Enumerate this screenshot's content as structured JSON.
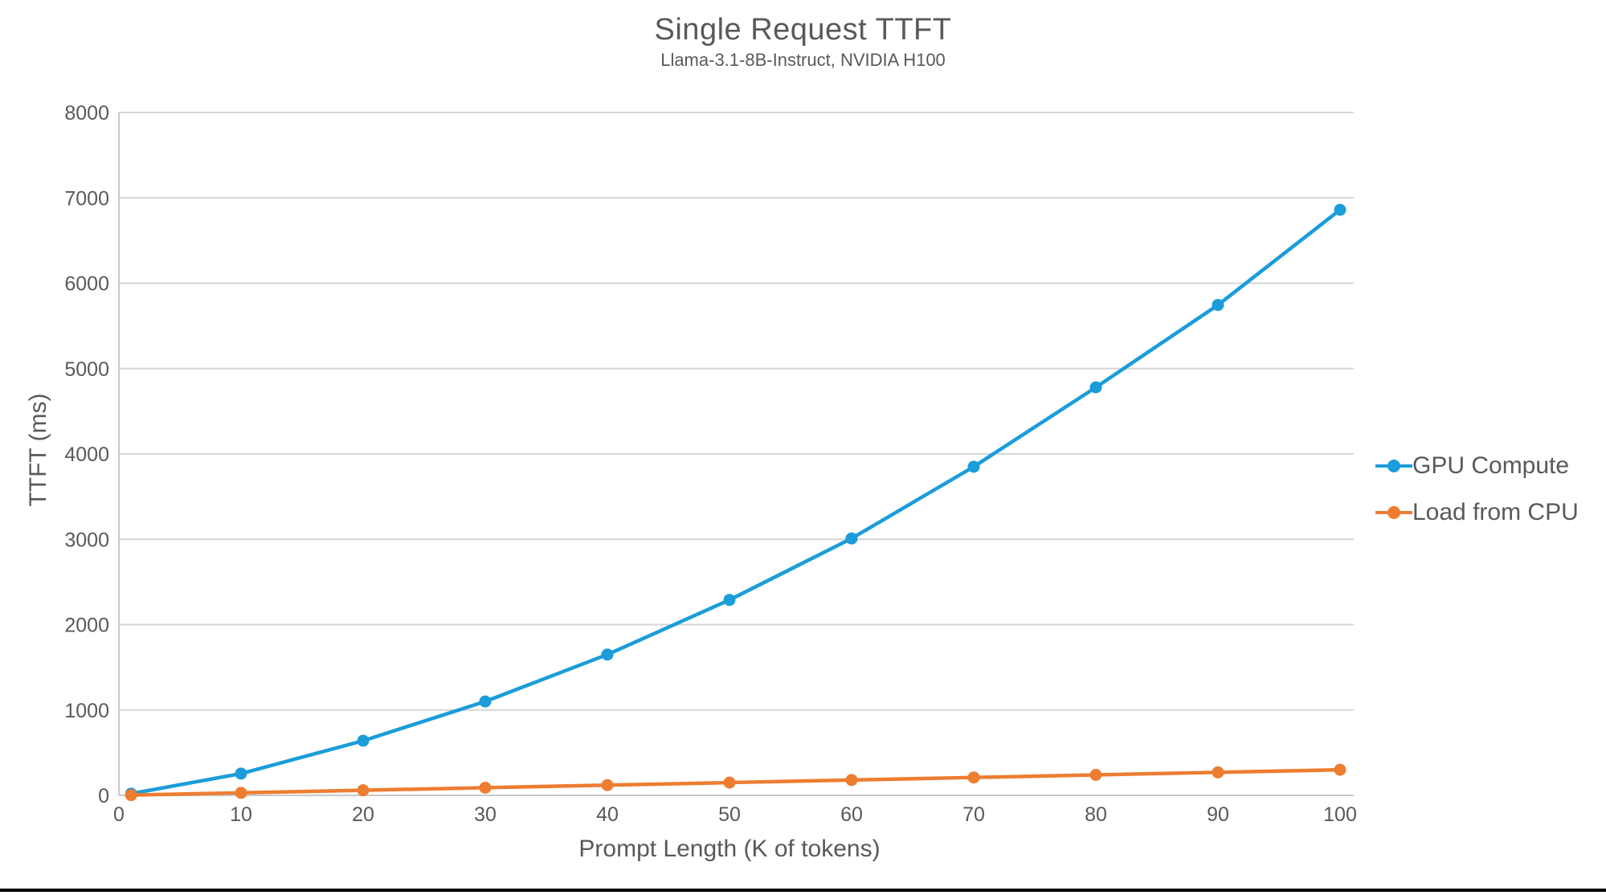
{
  "chart_data": {
    "type": "line",
    "title": "Single Request TTFT",
    "subtitle": "Llama-3.1-8B-Instruct, NVIDIA H100",
    "xlabel": "Prompt Length (K of tokens)",
    "ylabel": "TTFT (ms)",
    "x": [
      1,
      10,
      20,
      30,
      40,
      50,
      60,
      70,
      80,
      90,
      100
    ],
    "series": [
      {
        "name": "GPU Compute",
        "color": "#1A9DD9",
        "values": [
          20,
          255,
          640,
          1100,
          1650,
          2290,
          3010,
          3850,
          4780,
          5745,
          6860
        ]
      },
      {
        "name": "Load from CPU",
        "color": "#ED7D31",
        "values": [
          3,
          30,
          60,
          90,
          120,
          150,
          180,
          210,
          240,
          270,
          300
        ]
      }
    ],
    "xlim": [
      0,
      100
    ],
    "ylim": [
      0,
      8000
    ],
    "x_ticks": [
      0,
      10,
      20,
      30,
      40,
      50,
      60,
      70,
      80,
      90,
      100
    ],
    "y_ticks": [
      0,
      1000,
      2000,
      3000,
      4000,
      5000,
      6000,
      7000,
      8000
    ],
    "grid": true,
    "legend_position": "right",
    "colors": {
      "text": "#595959",
      "gridline": "#D6D6D6",
      "axis_line": "#C9C9C9"
    }
  }
}
